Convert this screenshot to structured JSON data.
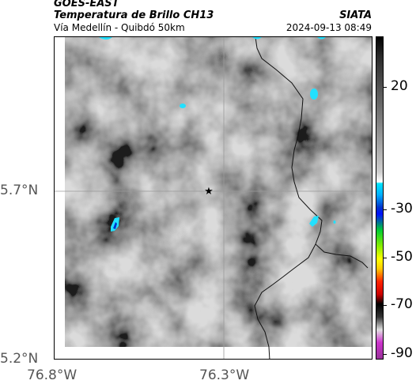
{
  "header": {
    "satellite": "GOES-EAST",
    "product": "Temperatura de Brillo CH13",
    "route": "Vía Medellín - Quibdó 50km",
    "organization": "SIATA",
    "timestamp": "2024-09-13 08:49"
  },
  "axes": {
    "lat_labels": [
      "5.7°N",
      "5.2°N"
    ],
    "lon_labels": [
      "76.8°W",
      "76.3°W"
    ],
    "gridlines": true
  },
  "marker": {
    "name": "star-marker",
    "symbol": "★"
  },
  "colorbar": {
    "labels": [
      "20",
      "-30",
      "-50",
      "-70",
      "-90"
    ],
    "colors": {
      "warm": "#ffffff",
      "mid": "#7a7a7a",
      "dark": "#2a2a2a",
      "cyan": "#00e5ff",
      "blue": "#0033cc",
      "green": "#00cc33",
      "yellow": "#ffff00",
      "red": "#ff2200",
      "black": "#000000",
      "magenta": "#cc33cc"
    }
  },
  "map_colors": {
    "border_line": "#111111",
    "grid_line": "#9a9a9a",
    "cold_cloud": "#22e0ff"
  }
}
